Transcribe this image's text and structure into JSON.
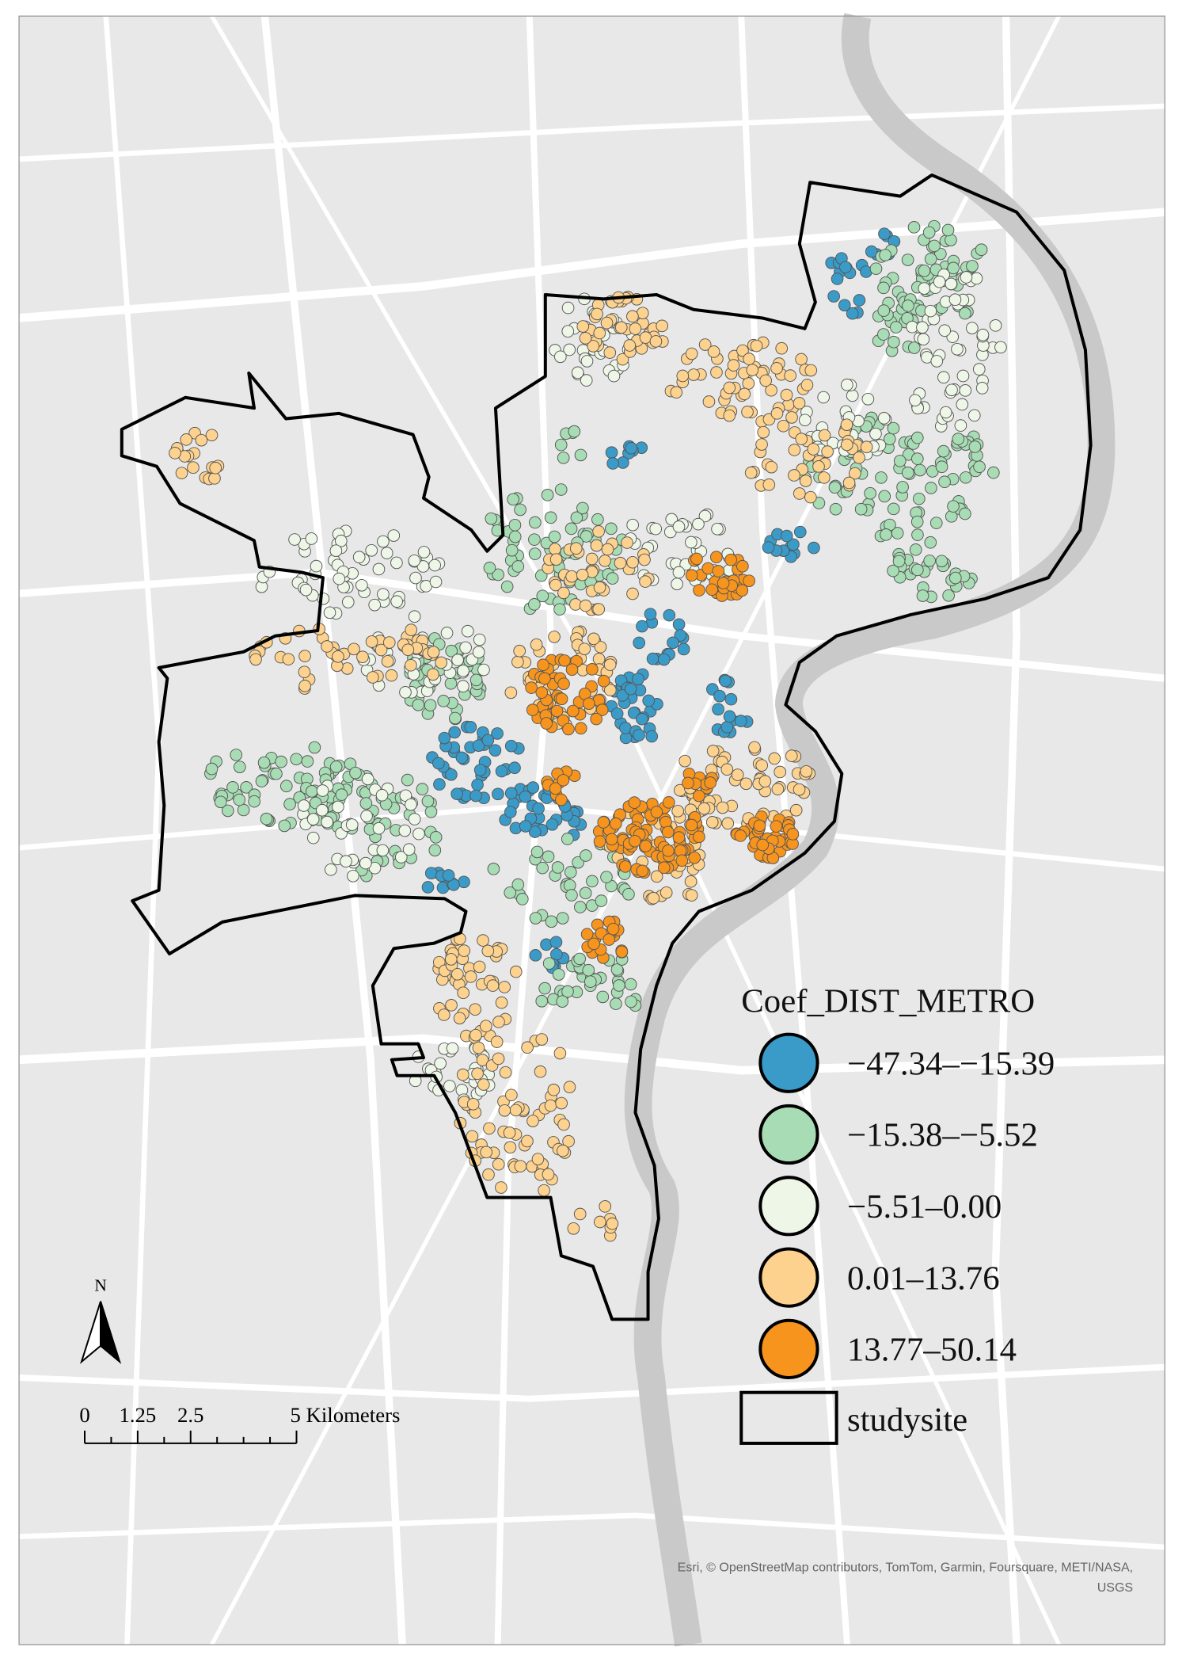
{
  "legend": {
    "title": "Coef_DIST_METRO",
    "items": [
      {
        "label": "−47.34–−15.39",
        "color": "#3a9bc8"
      },
      {
        "label": "−15.38–−5.52",
        "color": "#a8dcb4"
      },
      {
        "label": "−5.51–0.00",
        "color": "#eef6e8"
      },
      {
        "label": "0.01–13.76",
        "color": "#fdd28e"
      },
      {
        "label": "13.77–50.14",
        "color": "#f6941e"
      }
    ],
    "boundary": "studysite"
  },
  "north_arrow": "N",
  "scale_bar": {
    "labels": [
      "0",
      "1.25",
      "2.5",
      "5 Kilometers"
    ]
  },
  "attribution": [
    "Esri, © OpenStreetMap contributors, TomTom, Garmin, Foursquare, METI/NASA,",
    "USGS"
  ]
}
